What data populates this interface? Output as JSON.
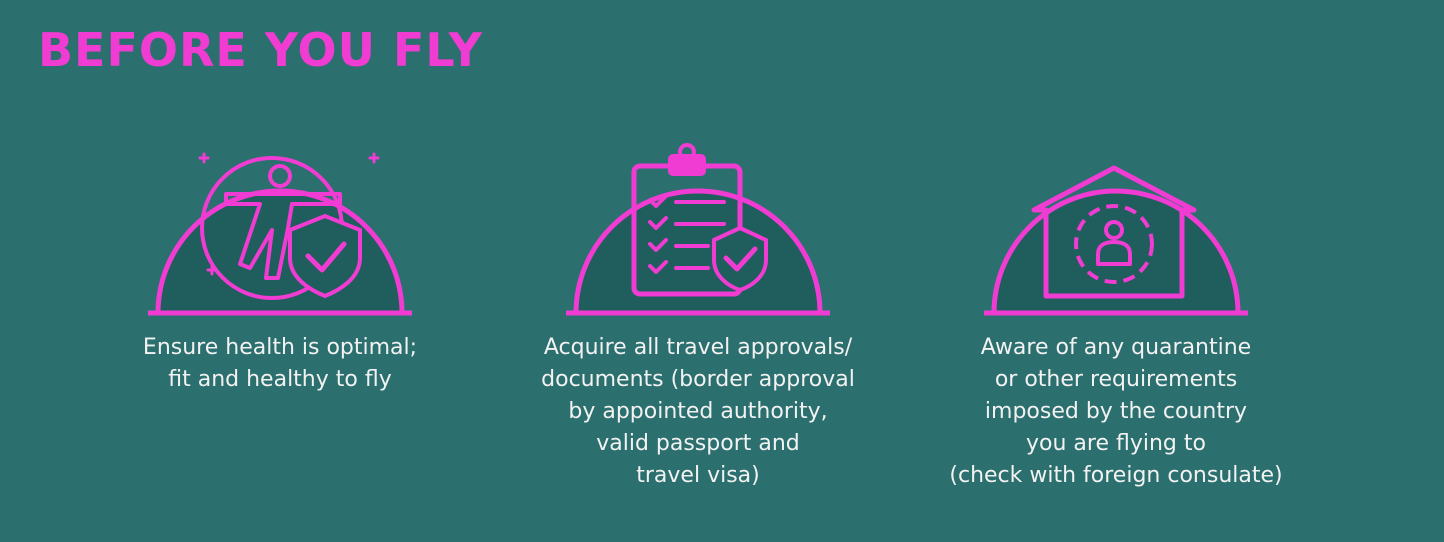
{
  "header": {
    "title": "BEFORE YOU FLY"
  },
  "colors": {
    "background": "#2b6f6e",
    "accent": "#f03cd2",
    "dome_fill": "#1f5e5c",
    "text": "#f2f2f2"
  },
  "items": [
    {
      "icon": "healthy-person-shield-icon",
      "text": "Ensure health is optimal;\nfit and healthy to fly"
    },
    {
      "icon": "clipboard-checklist-shield-icon",
      "text": "Acquire all travel approvals/\ndocuments (border approval\nby appointed authority,\nvalid passport and\ntravel visa)"
    },
    {
      "icon": "house-quarantine-person-icon",
      "text": "Aware of any quarantine\nor other requirements\nimposed by the country\nyou are flying to\n(check with foreign consulate)"
    }
  ]
}
